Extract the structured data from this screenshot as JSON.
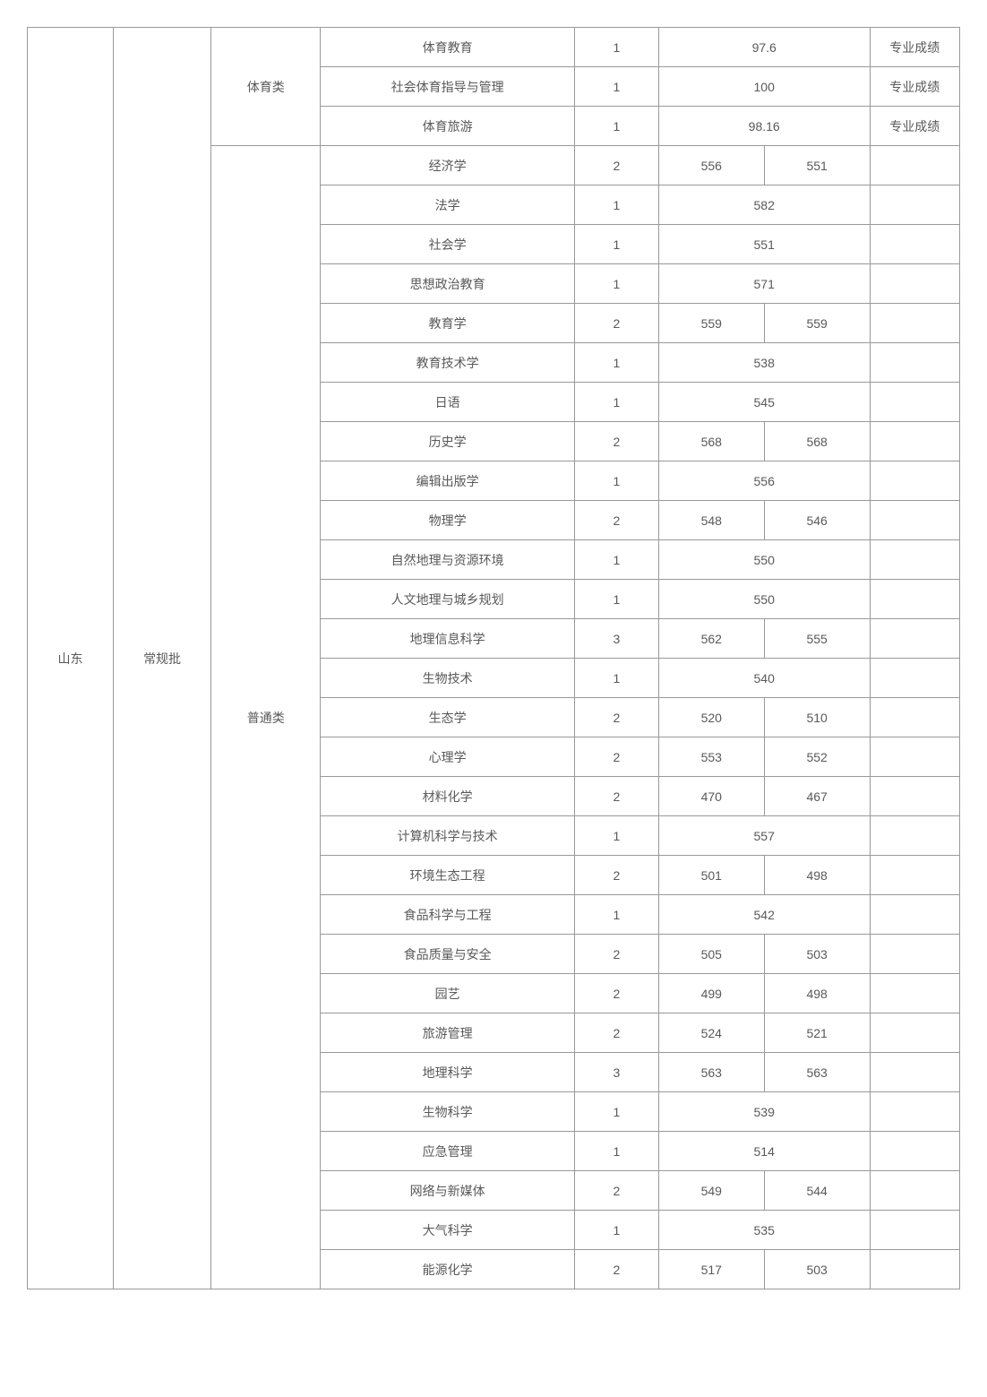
{
  "table": {
    "province": "山东",
    "batch": "常规批",
    "categories": [
      {
        "name": "体育类",
        "rows": [
          {
            "major": "体育教育",
            "count": "1",
            "score1": "97.6",
            "score2": "",
            "merged": true,
            "remark": "专业成绩"
          },
          {
            "major": "社会体育指导与管理",
            "count": "1",
            "score1": "100",
            "score2": "",
            "merged": true,
            "remark": "专业成绩"
          },
          {
            "major": "体育旅游",
            "count": "1",
            "score1": "98.16",
            "score2": "",
            "merged": true,
            "remark": "专业成绩"
          }
        ]
      },
      {
        "name": "普通类",
        "rows": [
          {
            "major": "经济学",
            "count": "2",
            "score1": "556",
            "score2": "551",
            "merged": false,
            "remark": ""
          },
          {
            "major": "法学",
            "count": "1",
            "score1": "582",
            "score2": "",
            "merged": true,
            "remark": ""
          },
          {
            "major": "社会学",
            "count": "1",
            "score1": "551",
            "score2": "",
            "merged": true,
            "remark": ""
          },
          {
            "major": "思想政治教育",
            "count": "1",
            "score1": "571",
            "score2": "",
            "merged": true,
            "remark": ""
          },
          {
            "major": "教育学",
            "count": "2",
            "score1": "559",
            "score2": "559",
            "merged": false,
            "remark": ""
          },
          {
            "major": "教育技术学",
            "count": "1",
            "score1": "538",
            "score2": "",
            "merged": true,
            "remark": ""
          },
          {
            "major": "日语",
            "count": "1",
            "score1": "545",
            "score2": "",
            "merged": true,
            "remark": ""
          },
          {
            "major": "历史学",
            "count": "2",
            "score1": "568",
            "score2": "568",
            "merged": false,
            "remark": ""
          },
          {
            "major": "编辑出版学",
            "count": "1",
            "score1": "556",
            "score2": "",
            "merged": true,
            "remark": ""
          },
          {
            "major": "物理学",
            "count": "2",
            "score1": "548",
            "score2": "546",
            "merged": false,
            "remark": ""
          },
          {
            "major": "自然地理与资源环境",
            "count": "1",
            "score1": "550",
            "score2": "",
            "merged": true,
            "remark": ""
          },
          {
            "major": "人文地理与城乡规划",
            "count": "1",
            "score1": "550",
            "score2": "",
            "merged": true,
            "remark": ""
          },
          {
            "major": "地理信息科学",
            "count": "3",
            "score1": "562",
            "score2": "555",
            "merged": false,
            "remark": ""
          },
          {
            "major": "生物技术",
            "count": "1",
            "score1": "540",
            "score2": "",
            "merged": true,
            "remark": ""
          },
          {
            "major": "生态学",
            "count": "2",
            "score1": "520",
            "score2": "510",
            "merged": false,
            "remark": ""
          },
          {
            "major": "心理学",
            "count": "2",
            "score1": "553",
            "score2": "552",
            "merged": false,
            "remark": ""
          },
          {
            "major": "材料化学",
            "count": "2",
            "score1": "470",
            "score2": "467",
            "merged": false,
            "remark": ""
          },
          {
            "major": "计算机科学与技术",
            "count": "1",
            "score1": "557",
            "score2": "",
            "merged": true,
            "remark": ""
          },
          {
            "major": "环境生态工程",
            "count": "2",
            "score1": "501",
            "score2": "498",
            "merged": false,
            "remark": ""
          },
          {
            "major": "食品科学与工程",
            "count": "1",
            "score1": "542",
            "score2": "",
            "merged": true,
            "remark": ""
          },
          {
            "major": "食品质量与安全",
            "count": "2",
            "score1": "505",
            "score2": "503",
            "merged": false,
            "remark": ""
          },
          {
            "major": "园艺",
            "count": "2",
            "score1": "499",
            "score2": "498",
            "merged": false,
            "remark": ""
          },
          {
            "major": "旅游管理",
            "count": "2",
            "score1": "524",
            "score2": "521",
            "merged": false,
            "remark": ""
          },
          {
            "major": "地理科学",
            "count": "3",
            "score1": "563",
            "score2": "563",
            "merged": false,
            "remark": ""
          },
          {
            "major": "生物科学",
            "count": "1",
            "score1": "539",
            "score2": "",
            "merged": true,
            "remark": ""
          },
          {
            "major": "应急管理",
            "count": "1",
            "score1": "514",
            "score2": "",
            "merged": true,
            "remark": ""
          },
          {
            "major": "网络与新媒体",
            "count": "2",
            "score1": "549",
            "score2": "544",
            "merged": false,
            "remark": ""
          },
          {
            "major": "大气科学",
            "count": "1",
            "score1": "535",
            "score2": "",
            "merged": true,
            "remark": ""
          },
          {
            "major": "能源化学",
            "count": "2",
            "score1": "517",
            "score2": "503",
            "merged": false,
            "remark": ""
          }
        ]
      }
    ]
  }
}
